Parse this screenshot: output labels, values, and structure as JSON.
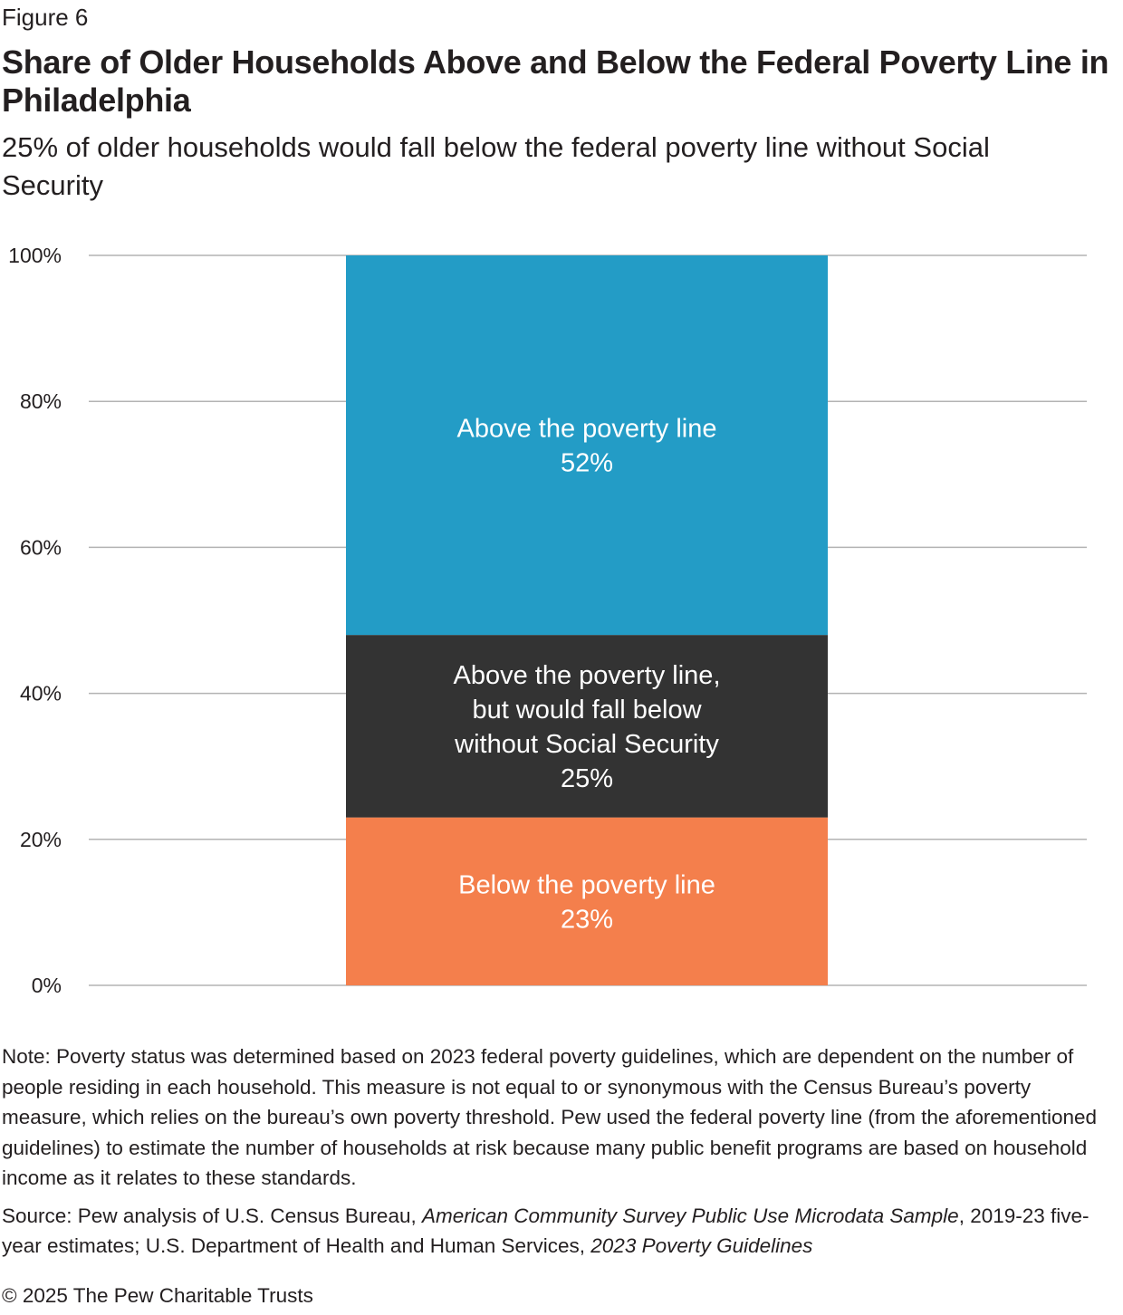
{
  "figure_label": "Figure 6",
  "title": "Share of Older Households Above and Below the Federal Poverty Line in Philadelphia",
  "subtitle": "25% of older households would fall below the federal poverty line without Social Security",
  "chart_data": {
    "type": "bar",
    "stacked": true,
    "ylim": [
      0,
      100
    ],
    "yticks": [
      "0%",
      "20%",
      "40%",
      "60%",
      "80%",
      "100%"
    ],
    "series": [
      {
        "name": "Below the poverty line",
        "value": 23,
        "value_label": "23%",
        "label_lines": [
          "Below the poverty line"
        ],
        "color": "#f47f4c"
      },
      {
        "name": "Above the poverty line, but would fall below without Social Security",
        "value": 25,
        "value_label": "25%",
        "label_lines": [
          "Above the poverty line,",
          "but would fall below",
          "without Social Security"
        ],
        "color": "#333333"
      },
      {
        "name": "Above the poverty line",
        "value": 52,
        "value_label": "52%",
        "label_lines": [
          "Above the poverty line"
        ],
        "color": "#239cc6"
      }
    ],
    "grid": true,
    "gridline_color": "#b3b3b3"
  },
  "notes": {
    "note": "Note: Poverty status was determined based on 2023 federal poverty guidelines, which are dependent on the number of people residing in each household. This measure is not equal to or synonymous with the Census Bureau’s poverty measure, which relies on the bureau’s own poverty threshold. Pew used the federal poverty line (from the aforementioned guidelines) to estimate the number of households at risk because many public benefit programs are based on household income as it relates to these standards.",
    "source_prefix": "Source: Pew analysis of U.S. Census Bureau, ",
    "source_title_1": "American Community Survey Public Use Microdata Sample",
    "source_middle": ", 2019-23 five-year estimates; U.S. Department of Health and Human Services, ",
    "source_title_2": "2023 Poverty Guidelines"
  },
  "copyright": "© 2025 The Pew Charitable Trusts"
}
